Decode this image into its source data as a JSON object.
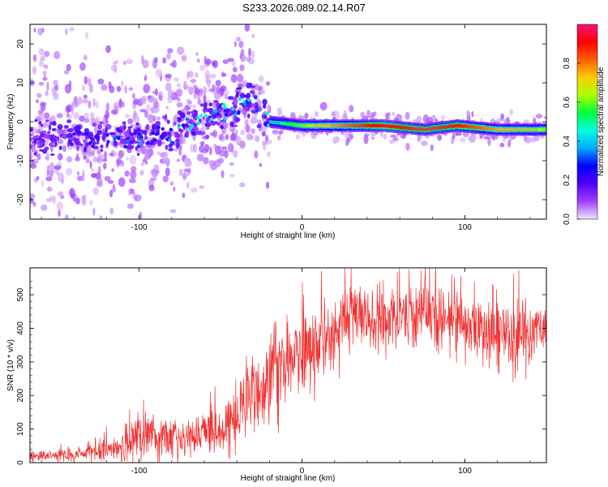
{
  "title": "S233.2026.089.02.14.R07",
  "chart_data": [
    {
      "type": "heatmap",
      "panel": "top",
      "title": "S233.2026.089.02.14.R07",
      "xlabel": "Height of straight line (km)",
      "ylabel": "Frequency (Hz)",
      "xlim": [
        -167,
        150
      ],
      "ylim": [
        -25,
        25
      ],
      "xticks": [
        -100,
        0,
        100
      ],
      "yticks": [
        -20,
        -10,
        0,
        10,
        20
      ],
      "colorbar": {
        "label": "Normalized spectral amplitude",
        "range": [
          0,
          1
        ],
        "ticks": [
          "0.0",
          "0.2",
          "0.4",
          "0.6",
          "0.8"
        ],
        "tick_values": [
          0,
          0.2,
          0.4,
          0.6,
          0.8
        ],
        "colors": [
          "#f2e6f8",
          "#a040ff",
          "#5000ff",
          "#0000ff",
          "#00aaff",
          "#00ffe0",
          "#00ff40",
          "#aaff00",
          "#ffcc00",
          "#ff6000",
          "#ff0000",
          "#ff1080"
        ]
      },
      "ridge": [
        {
          "x": -160,
          "freq": -4,
          "amp": 0.05
        },
        {
          "x": -140,
          "freq": -4,
          "amp": 0.12
        },
        {
          "x": -120,
          "freq": -5,
          "amp": 0.2
        },
        {
          "x": -100,
          "freq": -4,
          "amp": 0.22
        },
        {
          "x": -80,
          "freq": -3,
          "amp": 0.25
        },
        {
          "x": -60,
          "freq": 1,
          "amp": 0.3
        },
        {
          "x": -45,
          "freq": 3,
          "amp": 0.3
        },
        {
          "x": -30,
          "freq": 6,
          "amp": 0.25
        },
        {
          "x": -25,
          "freq": 1,
          "amp": 0.3
        },
        {
          "x": -20,
          "freq": 0,
          "amp": 0.45
        },
        {
          "x": 0,
          "freq": -1,
          "amp": 0.6
        },
        {
          "x": 25,
          "freq": -1,
          "amp": 0.8
        },
        {
          "x": 50,
          "freq": -1,
          "amp": 0.95
        },
        {
          "x": 75,
          "freq": -2,
          "amp": 0.85
        },
        {
          "x": 95,
          "freq": -1,
          "amp": 0.9
        },
        {
          "x": 120,
          "freq": -2,
          "amp": 0.75
        },
        {
          "x": 150,
          "freq": -2,
          "amp": 0.6
        }
      ]
    },
    {
      "type": "line",
      "panel": "bottom",
      "xlabel": "Height of straight line (km)",
      "ylabel": "SNR (10 * v/v)",
      "xlim": [
        -167,
        150
      ],
      "ylim": [
        0,
        580
      ],
      "xticks": [
        -100,
        0,
        100
      ],
      "yticks": [
        0,
        100,
        200,
        300,
        400,
        500
      ],
      "color": "#f03030",
      "series": [
        {
          "name": "SNR",
          "envelope": [
            {
              "x": -167,
              "mean": 20,
              "spread": 15
            },
            {
              "x": -150,
              "mean": 22,
              "spread": 18
            },
            {
              "x": -130,
              "mean": 28,
              "spread": 22
            },
            {
              "x": -110,
              "mean": 55,
              "spread": 55
            },
            {
              "x": -100,
              "mean": 85,
              "spread": 75
            },
            {
              "x": -90,
              "mean": 75,
              "spread": 60
            },
            {
              "x": -75,
              "mean": 80,
              "spread": 60
            },
            {
              "x": -60,
              "mean": 90,
              "spread": 60
            },
            {
              "x": -45,
              "mean": 120,
              "spread": 70
            },
            {
              "x": -35,
              "mean": 190,
              "spread": 120
            },
            {
              "x": -25,
              "mean": 250,
              "spread": 130
            },
            {
              "x": -15,
              "mean": 280,
              "spread": 130
            },
            {
              "x": -5,
              "mean": 300,
              "spread": 120
            },
            {
              "x": 5,
              "mean": 340,
              "spread": 120
            },
            {
              "x": 15,
              "mean": 370,
              "spread": 110
            },
            {
              "x": 30,
              "mean": 440,
              "spread": 90
            },
            {
              "x": 45,
              "mean": 430,
              "spread": 80
            },
            {
              "x": 60,
              "mean": 430,
              "spread": 80
            },
            {
              "x": 80,
              "mean": 440,
              "spread": 90
            },
            {
              "x": 100,
              "mean": 410,
              "spread": 80
            },
            {
              "x": 120,
              "mean": 390,
              "spread": 80
            },
            {
              "x": 135,
              "mean": 380,
              "spread": 100
            },
            {
              "x": 150,
              "mean": 400,
              "spread": 80
            }
          ]
        }
      ]
    }
  ]
}
